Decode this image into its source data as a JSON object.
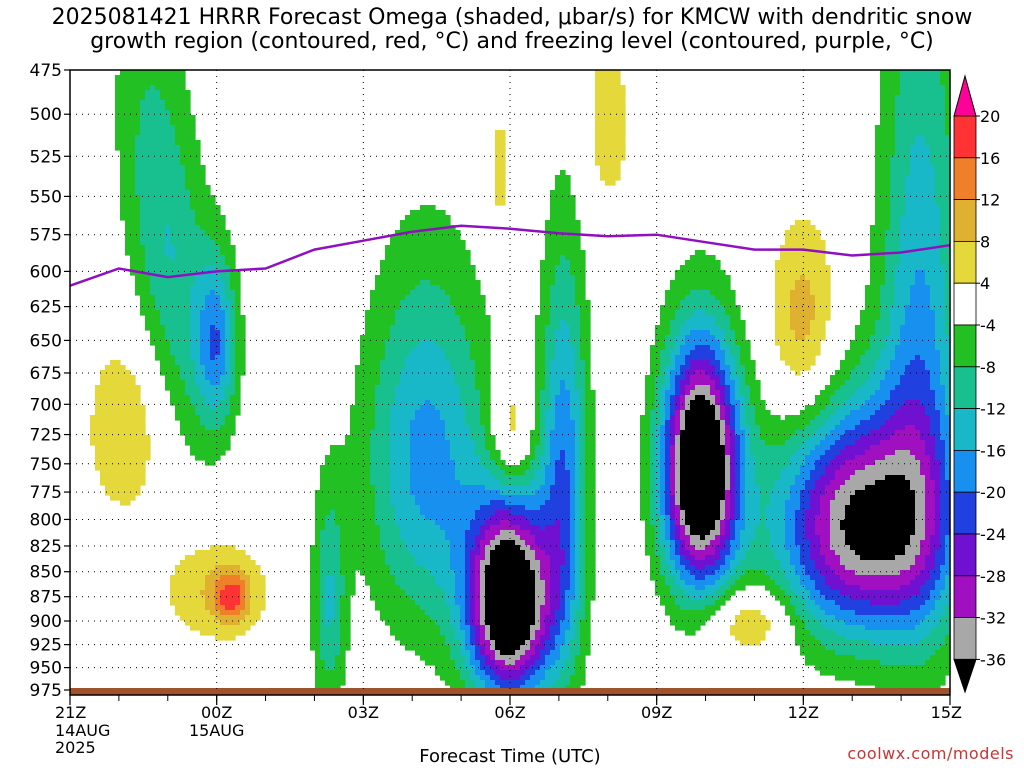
{
  "title": {
    "line1": "2025081421 HRRR Forecast Omega (shaded, μbar/s) for KMCW with dendritic snow",
    "line2": "growth region (contoured, red, °C) and freezing level (contoured, purple, °C)"
  },
  "credit": "coolwx.com/models",
  "chart_data": {
    "type": "contour",
    "title": "2025081421 HRRR Forecast Omega (shaded, μbar/s) for KMCW with dendritic snow growth region (contoured, red, °C) and freezing level (contoured, purple, °C)",
    "xlabel": "Forecast Time (UTC)",
    "ylabel": "",
    "x_ticks": [
      {
        "t": 0,
        "label": "21Z",
        "sub": [
          "14AUG",
          "2025"
        ]
      },
      {
        "t": 3,
        "label": "00Z",
        "sub": [
          "15AUG"
        ]
      },
      {
        "t": 6,
        "label": "03Z",
        "sub": []
      },
      {
        "t": 9,
        "label": "06Z",
        "sub": []
      },
      {
        "t": 12,
        "label": "09Z",
        "sub": []
      },
      {
        "t": 15,
        "label": "12Z",
        "sub": []
      },
      {
        "t": 18,
        "label": "15Z",
        "sub": []
      }
    ],
    "xlim": [
      0,
      18
    ],
    "y_levels": [
      475,
      500,
      525,
      550,
      575,
      600,
      625,
      650,
      675,
      700,
      725,
      750,
      775,
      800,
      825,
      850,
      875,
      900,
      925,
      950,
      975
    ],
    "ylim": [
      475,
      975
    ],
    "y_scale": "log-pressure",
    "grid": true,
    "colorbar": {
      "labels": [
        "20",
        "16",
        "12",
        "8",
        "4",
        "-4",
        "-8",
        "-12",
        "-16",
        "-20",
        "-24",
        "-28",
        "-32",
        "-36"
      ],
      "colors": [
        "#ff0099",
        "#ff3333",
        "#f07f2a",
        "#e0b030",
        "#e4d83a",
        "#ffffff",
        "#22c022",
        "#18c090",
        "#18b8c8",
        "#1890f0",
        "#2040e0",
        "#7010d0",
        "#a010c0",
        "#a8a8a8",
        "#000000"
      ]
    },
    "freezing_level": {
      "color": "#9010c0",
      "points": [
        [
          0,
          610
        ],
        [
          1,
          598
        ],
        [
          2,
          604
        ],
        [
          3,
          600
        ],
        [
          4,
          598
        ],
        [
          5,
          585
        ],
        [
          6,
          579
        ],
        [
          7,
          573
        ],
        [
          8,
          569
        ],
        [
          9,
          571
        ],
        [
          10,
          574
        ],
        [
          11,
          576
        ],
        [
          12,
          575
        ],
        [
          13,
          580
        ],
        [
          14,
          585
        ],
        [
          15,
          585
        ],
        [
          16,
          589
        ],
        [
          17,
          587
        ],
        [
          18,
          582
        ]
      ]
    },
    "features": [
      {
        "t": 2.0,
        "p": 580,
        "st": 0.7,
        "sp": 90,
        "rot": 0.6,
        "min": -9
      },
      {
        "t": 3.0,
        "p": 650,
        "st": 0.3,
        "sp": 45,
        "rot": 0,
        "min": -12
      },
      {
        "t": 1.1,
        "p": 720,
        "st": 0.55,
        "sp": 55,
        "rot": 0,
        "max": 6
      },
      {
        "t": 3.0,
        "p": 868,
        "st": 0.8,
        "sp": 40,
        "rot": 0,
        "max": 6
      },
      {
        "t": 3.3,
        "p": 875,
        "st": 0.25,
        "sp": 18,
        "rot": 0,
        "max": 9
      },
      {
        "t": 7.3,
        "p": 745,
        "st": 0.9,
        "sp": 110,
        "rot": 0,
        "min": -13
      },
      {
        "t": 9.0,
        "p": 880,
        "st": 0.6,
        "sp": 70,
        "rot": 0,
        "min": -36
      },
      {
        "t": 10.1,
        "p": 760,
        "st": 0.35,
        "sp": 130,
        "rot": 0,
        "min": -14
      },
      {
        "t": 9.0,
        "p": 725,
        "st": 0.3,
        "sp": 35,
        "rot": 0,
        "max": 8
      },
      {
        "t": 8.8,
        "p": 535,
        "st": 0.15,
        "sp": 30,
        "rot": 0,
        "max": 5
      },
      {
        "t": 11.0,
        "p": 505,
        "st": 0.35,
        "sp": 40,
        "rot": 0,
        "max": 5
      },
      {
        "t": 12.9,
        "p": 755,
        "st": 0.55,
        "sp": 75,
        "rot": 0,
        "min": -37
      },
      {
        "t": 15.0,
        "p": 640,
        "st": 0.5,
        "sp": 55,
        "rot": 0,
        "max": 8
      },
      {
        "t": 13.9,
        "p": 900,
        "st": 0.6,
        "sp": 25,
        "rot": 0,
        "max": 8
      },
      {
        "t": 16.2,
        "p": 805,
        "st": 1.2,
        "sp": 75,
        "rot": 0,
        "min": -28
      },
      {
        "t": 17.4,
        "p": 650,
        "st": 0.6,
        "sp": 180,
        "rot": 0,
        "min": -12
      },
      {
        "t": 5.3,
        "p": 880,
        "st": 0.25,
        "sp": 80,
        "rot": 0,
        "min": -9
      }
    ]
  }
}
